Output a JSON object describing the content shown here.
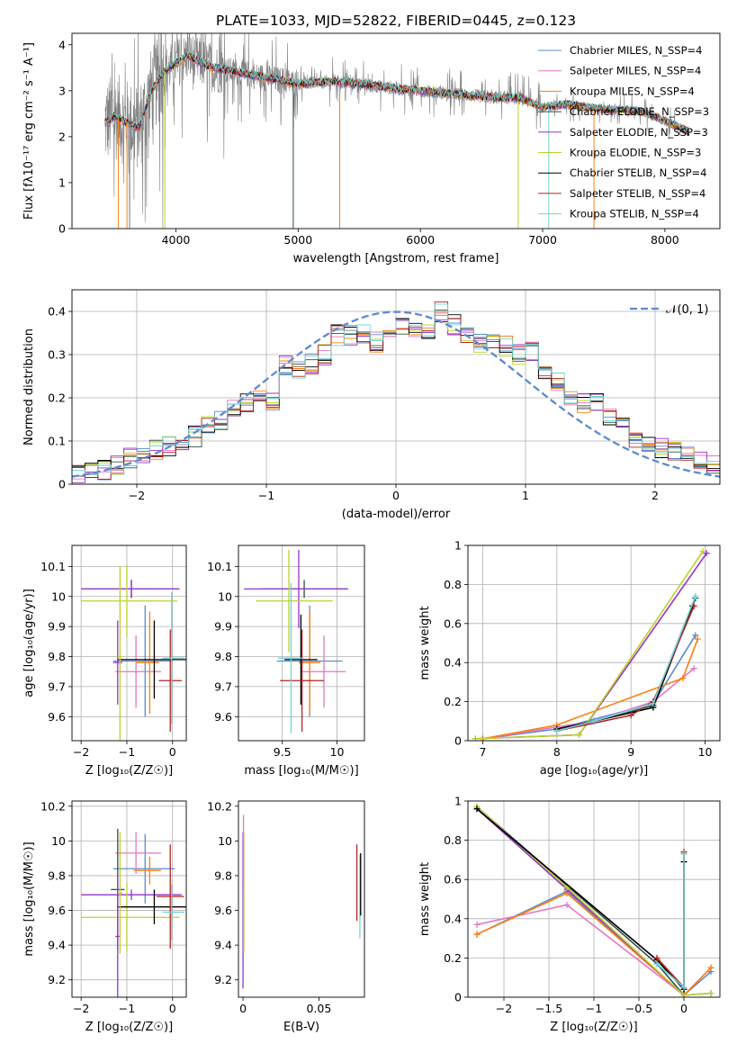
{
  "figure": {
    "title": "PLATE=1033, MJD=52822, FIBERID=0445, z=0.123"
  },
  "colors": {
    "spectrum": "#808080",
    "gaussian": "#5b8bd0",
    "grid": "#b0b0b0"
  },
  "chart_data": [
    {
      "id": "spectrum",
      "type": "line",
      "title": "PLATE=1033, MJD=52822, FIBERID=0445, z=0.123",
      "xlabel": "wavelength [Angstrom, rest frame]",
      "ylabel": "Flux [fλ10⁻¹⁷ erg cm⁻² s⁻¹ A⁻¹]",
      "xlim": [
        3150,
        8450
      ],
      "ylim": [
        0,
        4.25
      ],
      "xticks": [
        4000,
        5000,
        6000,
        7000,
        8000
      ],
      "yticks": [
        0,
        1,
        2,
        3,
        4
      ],
      "grid": false,
      "legend": "upper right",
      "data_anchors": {
        "x": [
          3420,
          3500,
          3600,
          3700,
          3800,
          3900,
          4000,
          4100,
          4300,
          4500,
          4800,
          5000,
          5300,
          5500,
          5800,
          6000,
          6200,
          6400,
          6600,
          6800,
          7000,
          7200,
          7500,
          7800,
          8000,
          8200
        ],
        "y": [
          2.3,
          2.45,
          2.3,
          2.2,
          3.0,
          3.4,
          3.6,
          3.75,
          3.5,
          3.4,
          3.25,
          3.15,
          3.2,
          3.15,
          3.05,
          3.0,
          2.95,
          2.9,
          2.85,
          2.85,
          2.65,
          2.7,
          2.6,
          2.55,
          2.35,
          2.1
        ]
      },
      "series": [
        {
          "name": "Chabrier MILES, N_SSP=4",
          "color": "#5b8bd0"
        },
        {
          "name": "Salpeter MILES, N_SSP=4",
          "color": "#e377c2"
        },
        {
          "name": "Kroupa MILES, N_SSP=4",
          "color": "#ff7f0e"
        },
        {
          "name": "Chabrier ELODIE, N_SSP=3",
          "color": "#2f4f4f"
        },
        {
          "name": "Salpeter ELODIE, N_SSP=3",
          "color": "#9932cc"
        },
        {
          "name": "Kroupa ELODIE, N_SSP=3",
          "color": "#bcd22a"
        },
        {
          "name": "Chabrier STELIB, N_SSP=4",
          "color": "#000000"
        },
        {
          "name": "Salpeter STELIB, N_SSP=4",
          "color": "#b22222"
        },
        {
          "name": "Kroupa STELIB, N_SSP=4",
          "color": "#6fd3d6"
        }
      ]
    },
    {
      "id": "residuals",
      "type": "line",
      "xlabel": "(data-model)/error",
      "ylabel": "Normed distribution",
      "xlim": [
        -2.5,
        2.5
      ],
      "ylim": [
        0,
        0.45
      ],
      "xticks": [
        -2,
        -1,
        0,
        1,
        2
      ],
      "yticks": [
        0.0,
        0.1,
        0.2,
        0.3,
        0.4
      ],
      "grid": true,
      "legend": "upper right",
      "legend_label": "𝒩(0, 1)",
      "bin_edges": [
        -2.5,
        -2.4,
        -2.3,
        -2.2,
        -2.1,
        -2.0,
        -1.9,
        -1.8,
        -1.7,
        -1.6,
        -1.5,
        -1.4,
        -1.3,
        -1.2,
        -1.1,
        -1.0,
        -0.9,
        -0.8,
        -0.7,
        -0.6,
        -0.5,
        -0.4,
        -0.3,
        -0.2,
        -0.1,
        0.0,
        0.1,
        0.2,
        0.3,
        0.4,
        0.5,
        0.6,
        0.7,
        0.8,
        0.9,
        1.0,
        1.1,
        1.2,
        1.3,
        1.4,
        1.5,
        1.6,
        1.7,
        1.8,
        1.9,
        2.0,
        2.1,
        2.2,
        2.3,
        2.4,
        2.5
      ],
      "base_hist": [
        0.025,
        0.03,
        0.035,
        0.045,
        0.06,
        0.065,
        0.08,
        0.09,
        0.095,
        0.11,
        0.14,
        0.145,
        0.17,
        0.19,
        0.2,
        0.19,
        0.275,
        0.26,
        0.28,
        0.3,
        0.345,
        0.345,
        0.35,
        0.33,
        0.36,
        0.37,
        0.355,
        0.36,
        0.4,
        0.37,
        0.35,
        0.33,
        0.33,
        0.32,
        0.3,
        0.31,
        0.26,
        0.24,
        0.2,
        0.19,
        0.19,
        0.15,
        0.13,
        0.11,
        0.1,
        0.085,
        0.075,
        0.065,
        0.06,
        0.05
      ]
    },
    {
      "id": "age_vs_Z",
      "type": "errorbar",
      "xlabel": "Z [log₁₀(Z/Z☉)]",
      "ylabel": "age  [log₁₀(age/yr)]",
      "xlim": [
        -2.2,
        0.3
      ],
      "ylim": [
        9.52,
        10.17
      ],
      "xticks": [
        -2,
        -1,
        0
      ],
      "yticks": [
        9.6,
        9.7,
        9.8,
        9.9,
        10.0,
        10.1
      ],
      "grid": true,
      "points": [
        {
          "x": -0.6,
          "y": 9.785,
          "xerr": [
            0.7,
            0.6
          ],
          "yerr": [
            0.185,
            0.185
          ],
          "color": "#5b8bd0"
        },
        {
          "x": -0.8,
          "y": 9.75,
          "xerr": [
            0.45,
            0.55
          ],
          "yerr": [
            0.12,
            0.12
          ],
          "color": "#e377c2"
        },
        {
          "x": -0.5,
          "y": 9.78,
          "xerr": [
            0.3,
            0.2
          ],
          "yerr": [
            0.17,
            0.17
          ],
          "color": "#ff7f0e"
        },
        {
          "x": -0.9,
          "y": 10.025,
          "xerr": [
            1.1,
            1.05
          ],
          "yerr": [
            0.03,
            0.03
          ],
          "color": "#2f4f4f"
        },
        {
          "x": -0.9,
          "y": 10.025,
          "xerr": [
            1.1,
            1.05
          ],
          "yerr": [
            0.03,
            0.03
          ],
          "color": "#9932cc"
        },
        {
          "x": -1.0,
          "y": 9.985,
          "xerr": [
            1.0,
            1.1
          ],
          "yerr": [
            0.12,
            0.12
          ],
          "color": "#bcd22a"
        },
        {
          "x": -0.4,
          "y": 9.79,
          "xerr": [
            0.8,
            0.7
          ],
          "yerr": [
            0.13,
            0.13
          ],
          "color": "#000000"
        },
        {
          "x": -0.05,
          "y": 9.72,
          "xerr": [
            0.25,
            0.25
          ],
          "yerr": [
            0.17,
            0.17
          ],
          "color": "#b22222"
        },
        {
          "x": -0.02,
          "y": 9.795,
          "xerr": [
            0.2,
            0.28
          ],
          "yerr": [
            0.22,
            0.22
          ],
          "color": "#6fd3d6"
        },
        {
          "x": -1.2,
          "y": 9.78,
          "xerr": [
            0.1,
            0.1
          ],
          "yerr": [
            0.14,
            0.14
          ],
          "color": "#9932cc"
        },
        {
          "x": -1.15,
          "y": 9.8,
          "xerr": [
            0.05,
            0.05
          ],
          "yerr": [
            0.3,
            0.3
          ],
          "color": "#bcd22a"
        }
      ]
    },
    {
      "id": "age_vs_mass",
      "type": "errorbar",
      "xlabel": "mass [log₁₀(M/M☉)]",
      "ylabel": "",
      "xlim": [
        9.1,
        10.25
      ],
      "ylim": [
        9.52,
        10.17
      ],
      "xticks": [
        9.5,
        10.0
      ],
      "yticks": [
        9.6,
        9.7,
        9.8,
        9.9,
        10.0,
        10.1
      ],
      "grid": true,
      "points": [
        {
          "x": 9.75,
          "y": 9.785,
          "xerr": [
            0.3,
            0.3
          ],
          "yerr": [
            0.185,
            0.185
          ],
          "color": "#5b8bd0"
        },
        {
          "x": 9.88,
          "y": 9.75,
          "xerr": [
            0.2,
            0.2
          ],
          "yerr": [
            0.12,
            0.12
          ],
          "color": "#e377c2"
        },
        {
          "x": 9.75,
          "y": 9.78,
          "xerr": [
            0.1,
            0.1
          ],
          "yerr": [
            0.17,
            0.17
          ],
          "color": "#ff7f0e"
        },
        {
          "x": 9.7,
          "y": 10.025,
          "xerr": [
            0.4,
            0.4
          ],
          "yerr": [
            0.03,
            0.03
          ],
          "color": "#2f4f4f"
        },
        {
          "x": 9.65,
          "y": 10.025,
          "xerr": [
            0.5,
            0.45
          ],
          "yerr": [
            0.13,
            0.13
          ],
          "color": "#9932cc"
        },
        {
          "x": 9.56,
          "y": 9.985,
          "xerr": [
            0.3,
            0.4
          ],
          "yerr": [
            0.17,
            0.17
          ],
          "color": "#bcd22a"
        },
        {
          "x": 9.67,
          "y": 9.79,
          "xerr": [
            0.15,
            0.15
          ],
          "yerr": [
            0.15,
            0.15
          ],
          "color": "#000000"
        },
        {
          "x": 9.68,
          "y": 9.72,
          "xerr": [
            0.2,
            0.2
          ],
          "yerr": [
            0.17,
            0.17
          ],
          "color": "#b22222"
        },
        {
          "x": 9.58,
          "y": 9.795,
          "xerr": [
            0.12,
            0.1
          ],
          "yerr": [
            0.25,
            0.25
          ],
          "color": "#6fd3d6"
        }
      ]
    },
    {
      "id": "weight_vs_age",
      "type": "line",
      "xlabel": "age  [log₁₀(age/yr)]",
      "ylabel": "mass weight",
      "xlim": [
        6.8,
        10.2
      ],
      "ylim": [
        0,
        1.0
      ],
      "xticks": [
        7,
        8,
        9,
        10
      ],
      "yticks": [
        0.0,
        0.2,
        0.4,
        0.6,
        0.8,
        1.0
      ],
      "grid": true,
      "series": [
        {
          "color": "#5b8bd0",
          "x": [
            7.0,
            8.0,
            9.3,
            9.87
          ],
          "y": [
            0.01,
            0.06,
            0.19,
            0.54
          ]
        },
        {
          "color": "#e377c2",
          "x": [
            7.0,
            8.5,
            9.3,
            9.85
          ],
          "y": [
            0.01,
            0.1,
            0.2,
            0.37
          ]
        },
        {
          "color": "#ff7f0e",
          "x": [
            7.0,
            8.0,
            9.7,
            9.9
          ],
          "y": [
            0.01,
            0.08,
            0.32,
            0.52
          ]
        },
        {
          "color": "#2f4f4f",
          "x": [
            8.0,
            8.5,
            9.3,
            9.87
          ],
          "y": [
            0.05,
            0.1,
            0.18,
            0.73
          ]
        },
        {
          "color": "#9932cc",
          "x": [
            6.9,
            8.3,
            10.02
          ],
          "y": [
            0.01,
            0.03,
            0.96
          ]
        },
        {
          "color": "#bcd22a",
          "x": [
            6.9,
            8.3,
            9.97
          ],
          "y": [
            0.01,
            0.03,
            0.97
          ]
        },
        {
          "color": "#000000",
          "x": [
            8.0,
            8.5,
            9.3,
            9.83
          ],
          "y": [
            0.06,
            0.1,
            0.17,
            0.69
          ]
        },
        {
          "color": "#b22222",
          "x": [
            8.0,
            9.0,
            9.3,
            9.85
          ],
          "y": [
            0.05,
            0.13,
            0.2,
            0.69
          ]
        },
        {
          "color": "#6fd3d6",
          "x": [
            8.0,
            8.5,
            9.3,
            9.87
          ],
          "y": [
            0.05,
            0.1,
            0.19,
            0.74
          ]
        }
      ]
    },
    {
      "id": "mass_vs_Z",
      "type": "errorbar",
      "xlabel": "Z [log₁₀(Z/Z☉)]",
      "ylabel": "mass [log₁₀(M/M☉)]",
      "xlim": [
        -2.2,
        0.3
      ],
      "ylim": [
        9.1,
        10.23
      ],
      "xticks": [
        -2,
        -1,
        0
      ],
      "yticks": [
        9.2,
        9.4,
        9.6,
        9.8,
        10.0,
        10.2
      ],
      "grid": true,
      "points": [
        {
          "x": -0.6,
          "y": 9.84,
          "xerr": [
            0.7,
            0.65
          ],
          "yerr": [
            0.2,
            0.2
          ],
          "color": "#5b8bd0"
        },
        {
          "x": -0.8,
          "y": 9.93,
          "xerr": [
            0.45,
            0.55
          ],
          "yerr": [
            0.12,
            0.12
          ],
          "color": "#e377c2"
        },
        {
          "x": -0.5,
          "y": 9.83,
          "xerr": [
            0.35,
            0.25
          ],
          "yerr": [
            0.08,
            0.08
          ],
          "color": "#ff7f0e"
        },
        {
          "x": -1.2,
          "y": 9.72,
          "xerr": [
            0.15,
            0.15
          ],
          "yerr": [
            0.35,
            0.35
          ],
          "color": "#2f4f4f"
        },
        {
          "x": -0.9,
          "y": 9.69,
          "xerr": [
            1.1,
            1.1
          ],
          "yerr": [
            0.03,
            0.03
          ],
          "color": "#9932cc"
        },
        {
          "x": -1.0,
          "y": 9.56,
          "xerr": [
            1.0,
            1.15
          ],
          "yerr": [
            0.2,
            0.2
          ],
          "color": "#bcd22a"
        },
        {
          "x": -0.4,
          "y": 9.62,
          "xerr": [
            0.8,
            0.7
          ],
          "yerr": [
            0.1,
            0.1
          ],
          "color": "#000000"
        },
        {
          "x": -0.05,
          "y": 9.68,
          "xerr": [
            0.3,
            0.3
          ],
          "yerr": [
            0.3,
            0.3
          ],
          "color": "#b22222"
        },
        {
          "x": -0.02,
          "y": 9.59,
          "xerr": [
            0.2,
            0.28
          ],
          "yerr": [
            0.16,
            0.16
          ],
          "color": "#6fd3d6"
        },
        {
          "x": -1.2,
          "y": 9.45,
          "xerr": [
            0.05,
            0.05
          ],
          "yerr": [
            0.35,
            0.35
          ],
          "color": "#9932cc"
        },
        {
          "x": -1.15,
          "y": 9.7,
          "xerr": [
            0.05,
            0.05
          ],
          "yerr": [
            0.35,
            0.35
          ],
          "color": "#bcd22a"
        }
      ]
    },
    {
      "id": "mass_vs_ebv",
      "type": "errorbar",
      "xlabel": "E(B-V)",
      "ylabel": "",
      "xlim": [
        -0.003,
        0.08
      ],
      "ylim": [
        9.1,
        10.23
      ],
      "xticks": [
        0.0,
        0.05
      ],
      "yticks": [
        9.2,
        9.4,
        9.6,
        9.8,
        10.0,
        10.2
      ],
      "grid": false,
      "points": [
        {
          "x": 0.0,
          "y": 9.6,
          "xerr": [
            0,
            0
          ],
          "yerr": [
            0.45,
            0.45
          ],
          "color": "#9932cc"
        },
        {
          "x": 0.0005,
          "y": 9.7,
          "xerr": [
            0,
            0
          ],
          "yerr": [
            0.35,
            0.35
          ],
          "color": "#bcd22a"
        },
        {
          "x": 0.0003,
          "y": 9.95,
          "xerr": [
            0,
            0
          ],
          "yerr": [
            0.2,
            0.2
          ],
          "color": "#e377c2"
        },
        {
          "x": 0.075,
          "y": 9.76,
          "xerr": [
            0,
            0
          ],
          "yerr": [
            0.22,
            0.22
          ],
          "color": "#b22222"
        },
        {
          "x": 0.077,
          "y": 9.68,
          "xerr": [
            0,
            0
          ],
          "yerr": [
            0.24,
            0.24
          ],
          "color": "#6fd3d6"
        },
        {
          "x": 0.0775,
          "y": 9.75,
          "xerr": [
            0,
            0
          ],
          "yerr": [
            0.18,
            0.18
          ],
          "color": "#000000"
        }
      ]
    },
    {
      "id": "weight_vs_Z",
      "type": "line",
      "xlabel": "Z [log₁₀(Z/Z☉)]",
      "ylabel": "mass weight",
      "xlim": [
        -2.4,
        0.4
      ],
      "ylim": [
        0,
        1.0
      ],
      "xticks": [
        -2.0,
        -1.5,
        -1.0,
        -0.5,
        0.0
      ],
      "yticks": [
        0.0,
        0.2,
        0.4,
        0.6,
        0.8,
        1.0
      ],
      "grid": true,
      "series": [
        {
          "color": "#5b8bd0",
          "x": [
            -2.3,
            -1.3,
            0.0,
            0.3
          ],
          "y": [
            0.32,
            0.54,
            0.01,
            0.13
          ]
        },
        {
          "color": "#e377c2",
          "x": [
            -2.3,
            -1.3,
            0.0,
            0.3
          ],
          "y": [
            0.37,
            0.47,
            0.01,
            0.15
          ]
        },
        {
          "color": "#ff7f0e",
          "x": [
            -2.3,
            -1.3,
            0.0,
            0.3
          ],
          "y": [
            0.32,
            0.53,
            0.01,
            0.15
          ]
        },
        {
          "color": "#2f4f4f",
          "x": [
            -2.3,
            -0.3,
            0.0,
            0.0
          ],
          "y": [
            0.97,
            0.17,
            0.01,
            0.73
          ]
        },
        {
          "color": "#9932cc",
          "x": [
            -2.3,
            -1.3,
            0.0,
            0.3
          ],
          "y": [
            0.96,
            0.55,
            0.01,
            0.02
          ]
        },
        {
          "color": "#bcd22a",
          "x": [
            -2.3,
            -1.3,
            0.0,
            0.3
          ],
          "y": [
            0.97,
            0.56,
            0.01,
            0.02
          ]
        },
        {
          "color": "#000000",
          "x": [
            -2.3,
            -0.3,
            0.0,
            0.0
          ],
          "y": [
            0.96,
            0.19,
            0.04,
            0.69
          ]
        },
        {
          "color": "#b22222",
          "x": [
            -0.3,
            0.0,
            0.0
          ],
          "y": [
            0.2,
            0.05,
            0.74
          ]
        },
        {
          "color": "#6fd3d6",
          "x": [
            -0.3,
            0.0,
            0.0
          ],
          "y": [
            0.17,
            0.05,
            0.73
          ]
        }
      ]
    }
  ]
}
